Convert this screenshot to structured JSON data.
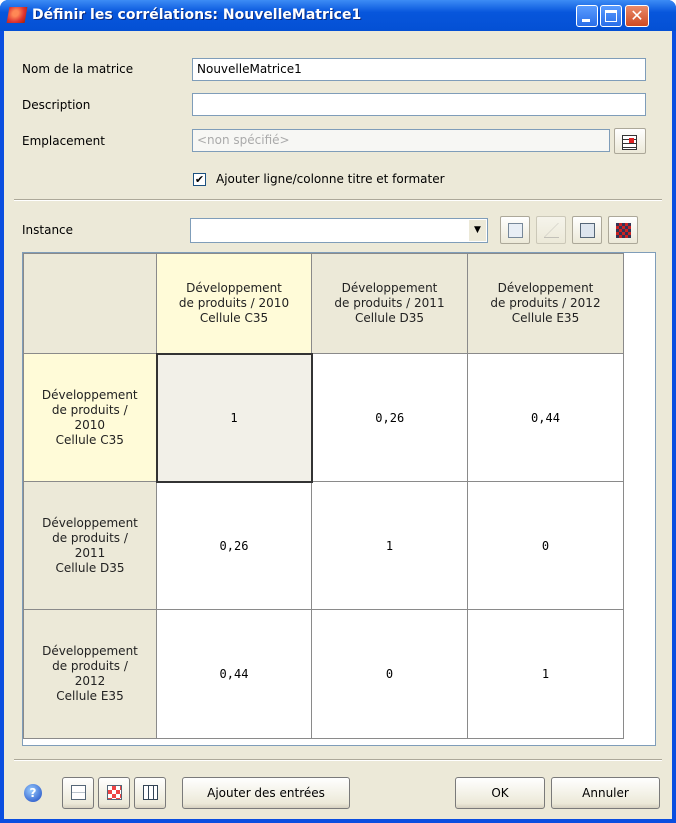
{
  "window": {
    "title": "Définir les corrélations: NouvelleMatrice1",
    "close": "✕"
  },
  "form": {
    "name_label": "Nom de la matrice",
    "name_value": "NouvelleMatrice1",
    "description_label": "Description",
    "description_value": "",
    "location_label": "Emplacement",
    "location_placeholder": "<non spécifié>",
    "checkbox_label": "Ajouter ligne/colonne titre et formater",
    "checkbox_checked": true,
    "instance_label": "Instance",
    "instance_value": ""
  },
  "matrix": {
    "columns": [
      {
        "l1": "Développement",
        "l2": "de produits / 2010",
        "l3": "Cellule C35"
      },
      {
        "l1": "Développement",
        "l2": "de produits / 2011",
        "l3": "Cellule D35"
      },
      {
        "l1": "Développement",
        "l2": "de produits / 2012",
        "l3": "Cellule E35"
      }
    ],
    "rows": [
      {
        "l1": "Développement",
        "l2": "de produits /",
        "l3": "2010",
        "l4": "Cellule C35",
        "values": [
          "1",
          "0,26",
          "0,44"
        ]
      },
      {
        "l1": "Développement",
        "l2": "de produits /",
        "l3": "2011",
        "l4": "Cellule D35",
        "values": [
          "0,26",
          "1",
          "0"
        ]
      },
      {
        "l1": "Développement",
        "l2": "de produits /",
        "l3": "2012",
        "l4": "Cellule E35",
        "values": [
          "0,44",
          "0",
          "1"
        ]
      }
    ]
  },
  "footer": {
    "add_entries": "Ajouter des entrées",
    "ok": "OK",
    "cancel": "Annuler"
  }
}
